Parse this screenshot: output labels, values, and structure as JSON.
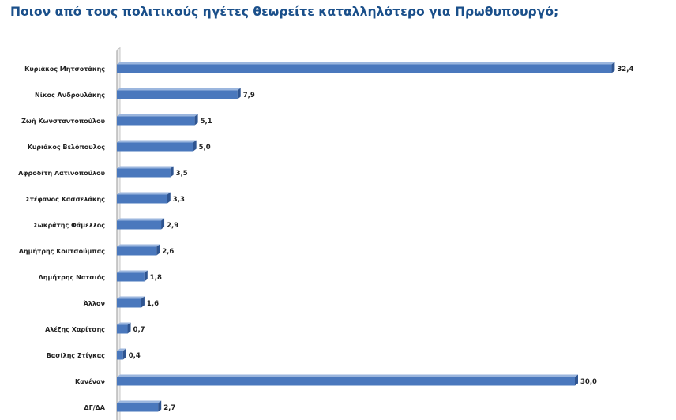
{
  "chart_data": {
    "type": "bar",
    "orientation": "horizontal",
    "title": "Ποιον από τους πολιτικούς ηγέτες θεωρείτε καταλληλότερο για Πρωθυπουργό;",
    "categories": [
      "Κυριάκος Μητσοτάκης",
      "Νίκος Ανδρουλάκης",
      "Ζωή Κωνσταντοπούλου",
      "Κυριάκος Βελόπουλος",
      "Αφροδίτη Λατινοπούλου",
      "Στέφανος Κασσελάκης",
      "Σωκράτης Φάμελλος",
      "Δημήτρης Κουτσούμπας",
      "Δημήτρης Νατσιός",
      "Άλλον",
      "Αλέξης Χαρίτσης",
      "Βασίλης Στίγκας",
      "Κανέναν",
      "ΔΓ/ΔΑ"
    ],
    "values": [
      32.4,
      7.9,
      5.1,
      5.0,
      3.5,
      3.3,
      2.9,
      2.6,
      1.8,
      1.6,
      0.7,
      0.4,
      30.0,
      2.7
    ],
    "value_labels": [
      "32,4",
      "7,9",
      "5,1",
      "5,0",
      "3,5",
      "3,3",
      "2,9",
      "2,6",
      "1,8",
      "1,6",
      "0,7",
      "0,4",
      "30,0",
      "2,7"
    ],
    "xlim": [
      0,
      33
    ],
    "grid": false,
    "legend": "none",
    "style": "3d",
    "bar_color": "#4a78bd",
    "bar_side_color": "#2f5591",
    "bar_top_color": "#9bb6de",
    "title_color": "#1a4f8a"
  }
}
